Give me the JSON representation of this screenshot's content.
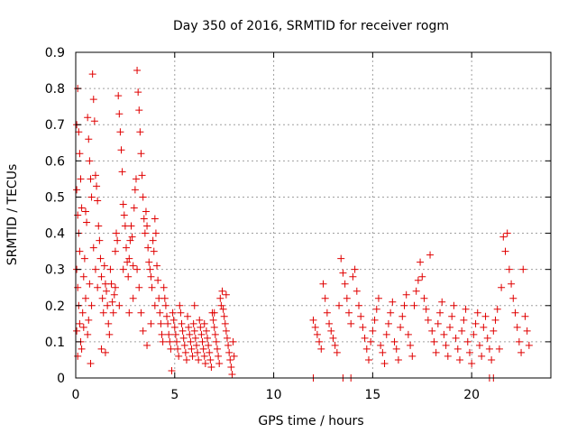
{
  "chart_data": {
    "type": "scatter",
    "title": "Day 350 of 2016, SRMTID for receiver rogm",
    "xlabel": "GPS time / hours",
    "ylabel": "SRMTID / TECUs",
    "xlim": [
      0,
      24
    ],
    "ylim": [
      0,
      0.9
    ],
    "xticks": [
      0,
      5,
      10,
      15,
      20
    ],
    "yticks": [
      0,
      0.1,
      0.2,
      0.3,
      0.4,
      0.5,
      0.6,
      0.7,
      0.8,
      0.9
    ],
    "xtick_labels": [
      "0",
      "5",
      "10",
      "15",
      "20"
    ],
    "ytick_labels": [
      "0",
      "0.1",
      "0.2",
      "0.3",
      "0.4",
      "0.5",
      "0.6",
      "0.7",
      "0.8",
      "0.9"
    ],
    "grid": true,
    "marker": "+",
    "color": "#e00000",
    "series": [
      {
        "name": "SRMTID",
        "points": [
          [
            0.05,
            0.7
          ],
          [
            0.1,
            0.8
          ],
          [
            0.15,
            0.68
          ],
          [
            0.2,
            0.62
          ],
          [
            0.25,
            0.55
          ],
          [
            0.3,
            0.47
          ],
          [
            0.1,
            0.45
          ],
          [
            0.05,
            0.52
          ],
          [
            0.15,
            0.4
          ],
          [
            0.2,
            0.35
          ],
          [
            0.05,
            0.3
          ],
          [
            0.1,
            0.25
          ],
          [
            0.15,
            0.2
          ],
          [
            0.2,
            0.15
          ],
          [
            0.05,
            0.13
          ],
          [
            0.25,
            0.1
          ],
          [
            0.3,
            0.08
          ],
          [
            0.1,
            0.06
          ],
          [
            0.35,
            0.18
          ],
          [
            0.4,
            0.28
          ],
          [
            0.45,
            0.33
          ],
          [
            0.5,
            0.46
          ],
          [
            0.55,
            0.43
          ],
          [
            0.6,
            0.72
          ],
          [
            0.65,
            0.66
          ],
          [
            0.7,
            0.6
          ],
          [
            0.75,
            0.55
          ],
          [
            0.8,
            0.5
          ],
          [
            0.4,
            0.14
          ],
          [
            0.5,
            0.22
          ],
          [
            0.85,
            0.84
          ],
          [
            0.9,
            0.77
          ],
          [
            0.95,
            0.71
          ],
          [
            1.0,
            0.56
          ],
          [
            1.05,
            0.53
          ],
          [
            1.1,
            0.49
          ],
          [
            0.9,
            0.36
          ],
          [
            1.0,
            0.3
          ],
          [
            1.1,
            0.25
          ],
          [
            0.7,
            0.26
          ],
          [
            0.8,
            0.2
          ],
          [
            0.6,
            0.12
          ],
          [
            0.75,
            0.04
          ],
          [
            0.65,
            0.16
          ],
          [
            1.15,
            0.42
          ],
          [
            1.2,
            0.38
          ],
          [
            1.25,
            0.33
          ],
          [
            1.3,
            0.28
          ],
          [
            1.35,
            0.22
          ],
          [
            1.4,
            0.18
          ],
          [
            1.45,
            0.31
          ],
          [
            1.5,
            0.26
          ],
          [
            1.55,
            0.24
          ],
          [
            1.6,
            0.2
          ],
          [
            1.65,
            0.15
          ],
          [
            1.7,
            0.12
          ],
          [
            1.3,
            0.08
          ],
          [
            1.5,
            0.07
          ],
          [
            1.75,
            0.3
          ],
          [
            1.8,
            0.26
          ],
          [
            1.85,
            0.21
          ],
          [
            1.9,
            0.18
          ],
          [
            1.95,
            0.23
          ],
          [
            2.0,
            0.35
          ],
          [
            2.05,
            0.4
          ],
          [
            2.1,
            0.38
          ],
          [
            2.15,
            0.78
          ],
          [
            2.2,
            0.73
          ],
          [
            2.25,
            0.68
          ],
          [
            2.3,
            0.63
          ],
          [
            2.35,
            0.57
          ],
          [
            2.4,
            0.48
          ],
          [
            2.45,
            0.45
          ],
          [
            2.5,
            0.42
          ],
          [
            2.0,
            0.25
          ],
          [
            2.2,
            0.2
          ],
          [
            2.4,
            0.3
          ],
          [
            2.55,
            0.36
          ],
          [
            2.6,
            0.32
          ],
          [
            2.65,
            0.28
          ],
          [
            2.7,
            0.33
          ],
          [
            2.75,
            0.38
          ],
          [
            2.8,
            0.42
          ],
          [
            2.85,
            0.39
          ],
          [
            2.9,
            0.31
          ],
          [
            2.95,
            0.47
          ],
          [
            3.0,
            0.52
          ],
          [
            3.05,
            0.55
          ],
          [
            3.1,
            0.85
          ],
          [
            3.15,
            0.79
          ],
          [
            3.2,
            0.74
          ],
          [
            3.25,
            0.68
          ],
          [
            3.3,
            0.62
          ],
          [
            3.35,
            0.56
          ],
          [
            3.4,
            0.5
          ],
          [
            3.45,
            0.44
          ],
          [
            3.5,
            0.4
          ],
          [
            3.1,
            0.3
          ],
          [
            3.2,
            0.25
          ],
          [
            3.3,
            0.18
          ],
          [
            3.4,
            0.13
          ],
          [
            2.9,
            0.22
          ],
          [
            2.7,
            0.18
          ],
          [
            3.55,
            0.46
          ],
          [
            3.6,
            0.42
          ],
          [
            3.65,
            0.36
          ],
          [
            3.7,
            0.32
          ],
          [
            3.75,
            0.3
          ],
          [
            3.8,
            0.28
          ],
          [
            3.85,
            0.25
          ],
          [
            3.9,
            0.38
          ],
          [
            3.95,
            0.35
          ],
          [
            4.0,
            0.44
          ],
          [
            4.05,
            0.4
          ],
          [
            4.1,
            0.31
          ],
          [
            4.15,
            0.27
          ],
          [
            4.2,
            0.22
          ],
          [
            4.25,
            0.18
          ],
          [
            4.3,
            0.15
          ],
          [
            4.35,
            0.12
          ],
          [
            4.4,
            0.1
          ],
          [
            4.0,
            0.2
          ],
          [
            3.8,
            0.15
          ],
          [
            3.6,
            0.09
          ],
          [
            4.45,
            0.25
          ],
          [
            4.5,
            0.22
          ],
          [
            4.55,
            0.2
          ],
          [
            4.6,
            0.17
          ],
          [
            4.65,
            0.15
          ],
          [
            4.7,
            0.12
          ],
          [
            4.75,
            0.1
          ],
          [
            4.8,
            0.08
          ],
          [
            4.85,
            0.02
          ],
          [
            4.9,
            0.18
          ],
          [
            4.95,
            0.16
          ],
          [
            5.0,
            0.14
          ],
          [
            5.05,
            0.12
          ],
          [
            5.1,
            0.1
          ],
          [
            5.15,
            0.08
          ],
          [
            5.2,
            0.06
          ],
          [
            5.25,
            0.2
          ],
          [
            5.3,
            0.18
          ],
          [
            5.35,
            0.15
          ],
          [
            5.4,
            0.13
          ],
          [
            5.45,
            0.11
          ],
          [
            5.5,
            0.09
          ],
          [
            5.55,
            0.07
          ],
          [
            5.6,
            0.05
          ],
          [
            5.65,
            0.17
          ],
          [
            5.7,
            0.14
          ],
          [
            5.75,
            0.12
          ],
          [
            5.8,
            0.1
          ],
          [
            5.85,
            0.08
          ],
          [
            5.9,
            0.06
          ],
          [
            5.95,
            0.15
          ],
          [
            6.0,
            0.13
          ],
          [
            6.05,
            0.11
          ],
          [
            6.1,
            0.09
          ],
          [
            6.15,
            0.07
          ],
          [
            6.2,
            0.05
          ],
          [
            6.25,
            0.16
          ],
          [
            6.3,
            0.14
          ],
          [
            6.35,
            0.12
          ],
          [
            6.4,
            0.1
          ],
          [
            6.45,
            0.08
          ],
          [
            6.5,
            0.06
          ],
          [
            6.55,
            0.04
          ],
          [
            6.6,
            0.13
          ],
          [
            6.65,
            0.11
          ],
          [
            6.7,
            0.09
          ],
          [
            6.75,
            0.07
          ],
          [
            6.8,
            0.05
          ],
          [
            6.85,
            0.03
          ],
          [
            6.9,
            0.18
          ],
          [
            6.95,
            0.16
          ],
          [
            7.0,
            0.14
          ],
          [
            7.05,
            0.12
          ],
          [
            7.1,
            0.1
          ],
          [
            7.15,
            0.08
          ],
          [
            7.2,
            0.06
          ],
          [
            7.25,
            0.04
          ],
          [
            7.3,
            0.22
          ],
          [
            7.35,
            0.2
          ],
          [
            7.4,
            0.24
          ],
          [
            7.45,
            0.19
          ],
          [
            7.5,
            0.17
          ],
          [
            7.55,
            0.15
          ],
          [
            7.6,
            0.13
          ],
          [
            7.65,
            0.11
          ],
          [
            7.7,
            0.09
          ],
          [
            7.75,
            0.07
          ],
          [
            7.8,
            0.05
          ],
          [
            7.85,
            0.03
          ],
          [
            7.9,
            0.01
          ],
          [
            7.95,
            0.1
          ],
          [
            8.0,
            0.06
          ],
          [
            7.6,
            0.23
          ],
          [
            7.0,
            0.18
          ],
          [
            6.5,
            0.15
          ],
          [
            6.0,
            0.2
          ],
          [
            12.0,
            0.16
          ],
          [
            12.1,
            0.14
          ],
          [
            12.2,
            0.12
          ],
          [
            12.3,
            0.1
          ],
          [
            12.4,
            0.08
          ],
          [
            12.5,
            0.26
          ],
          [
            12.6,
            0.22
          ],
          [
            12.7,
            0.18
          ],
          [
            12.8,
            0.15
          ],
          [
            12.9,
            0.13
          ],
          [
            13.0,
            0.11
          ],
          [
            13.1,
            0.09
          ],
          [
            13.2,
            0.07
          ],
          [
            13.3,
            0.2
          ],
          [
            13.4,
            0.33
          ],
          [
            13.5,
            0.29
          ],
          [
            13.6,
            0.26
          ],
          [
            13.7,
            0.22
          ],
          [
            13.8,
            0.18
          ],
          [
            13.9,
            0.15
          ],
          [
            14.0,
            0.28
          ],
          [
            14.1,
            0.3
          ],
          [
            14.2,
            0.24
          ],
          [
            14.3,
            0.2
          ],
          [
            14.4,
            0.17
          ],
          [
            14.5,
            0.14
          ],
          [
            14.6,
            0.11
          ],
          [
            14.7,
            0.08
          ],
          [
            14.8,
            0.05
          ],
          [
            14.9,
            0.1
          ],
          [
            15.0,
            0.13
          ],
          [
            15.1,
            0.16
          ],
          [
            15.2,
            0.19
          ],
          [
            15.3,
            0.22
          ],
          [
            15.4,
            0.09
          ],
          [
            15.5,
            0.07
          ],
          [
            15.6,
            0.04
          ],
          [
            15.7,
            0.12
          ],
          [
            15.8,
            0.15
          ],
          [
            15.9,
            0.18
          ],
          [
            16.0,
            0.21
          ],
          [
            16.1,
            0.1
          ],
          [
            16.2,
            0.08
          ],
          [
            16.3,
            0.05
          ],
          [
            16.4,
            0.14
          ],
          [
            16.5,
            0.17
          ],
          [
            16.6,
            0.2
          ],
          [
            16.7,
            0.23
          ],
          [
            16.8,
            0.12
          ],
          [
            16.9,
            0.09
          ],
          [
            17.0,
            0.06
          ],
          [
            17.1,
            0.2
          ],
          [
            17.2,
            0.24
          ],
          [
            17.3,
            0.27
          ],
          [
            17.4,
            0.32
          ],
          [
            17.5,
            0.28
          ],
          [
            17.6,
            0.22
          ],
          [
            17.7,
            0.19
          ],
          [
            17.8,
            0.16
          ],
          [
            17.9,
            0.34
          ],
          [
            18.0,
            0.13
          ],
          [
            18.1,
            0.1
          ],
          [
            18.2,
            0.07
          ],
          [
            18.3,
            0.15
          ],
          [
            18.4,
            0.18
          ],
          [
            18.5,
            0.21
          ],
          [
            18.6,
            0.12
          ],
          [
            18.7,
            0.09
          ],
          [
            18.8,
            0.06
          ],
          [
            18.9,
            0.14
          ],
          [
            19.0,
            0.17
          ],
          [
            19.1,
            0.2
          ],
          [
            19.2,
            0.11
          ],
          [
            19.3,
            0.08
          ],
          [
            19.4,
            0.05
          ],
          [
            19.5,
            0.13
          ],
          [
            19.6,
            0.16
          ],
          [
            19.7,
            0.19
          ],
          [
            19.8,
            0.1
          ],
          [
            19.9,
            0.07
          ],
          [
            20.0,
            0.04
          ],
          [
            20.1,
            0.12
          ],
          [
            20.2,
            0.15
          ],
          [
            20.3,
            0.18
          ],
          [
            20.4,
            0.09
          ],
          [
            20.5,
            0.06
          ],
          [
            20.6,
            0.14
          ],
          [
            20.7,
            0.17
          ],
          [
            20.8,
            0.11
          ],
          [
            20.9,
            0.08
          ],
          [
            21.0,
            0.05
          ],
          [
            21.1,
            0.13
          ],
          [
            21.2,
            0.16
          ],
          [
            21.3,
            0.19
          ],
          [
            21.4,
            0.08
          ],
          [
            21.5,
            0.25
          ],
          [
            21.6,
            0.39
          ],
          [
            21.7,
            0.35
          ],
          [
            21.8,
            0.4
          ],
          [
            21.9,
            0.3
          ],
          [
            22.0,
            0.26
          ],
          [
            22.1,
            0.22
          ],
          [
            22.2,
            0.18
          ],
          [
            22.3,
            0.14
          ],
          [
            22.4,
            0.1
          ],
          [
            22.5,
            0.07
          ],
          [
            22.6,
            0.3
          ],
          [
            22.7,
            0.17
          ],
          [
            22.8,
            0.13
          ],
          [
            22.9,
            0.09
          ],
          [
            12.0,
            0.0
          ],
          [
            13.5,
            0.0
          ],
          [
            13.9,
            0.0
          ],
          [
            20.9,
            0.0
          ],
          [
            21.1,
            0.0
          ]
        ]
      }
    ]
  }
}
